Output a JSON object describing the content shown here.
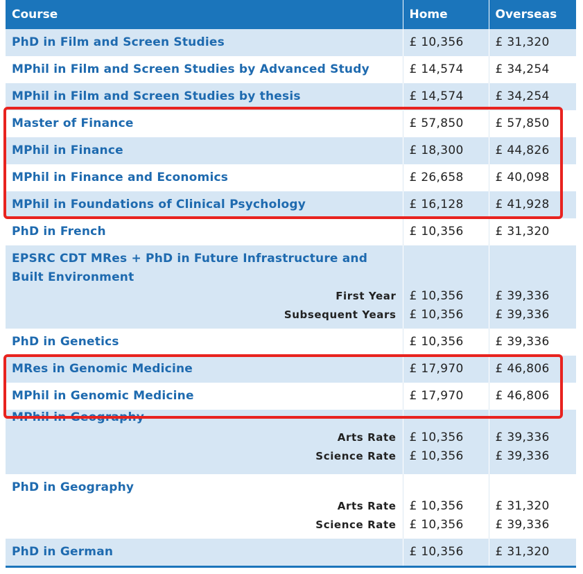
{
  "headers": {
    "course": "Course",
    "home": "Home",
    "overseas": "Overseas"
  },
  "rows": [
    {
      "course": "PhD in Film and Screen Studies",
      "home": "£ 10,356",
      "overseas": "£ 31,320"
    },
    {
      "course": "MPhil in Film and Screen Studies by Advanced Study",
      "home": "£ 14,574",
      "overseas": "£ 34,254"
    },
    {
      "course": "MPhil in Film and Screen Studies by thesis",
      "home": "£ 14,574",
      "overseas": "£ 34,254"
    },
    {
      "course": "Master of Finance",
      "home": "£ 57,850",
      "overseas": "£ 57,850"
    },
    {
      "course": "MPhil in Finance",
      "home": "£ 18,300",
      "overseas": "£ 44,826"
    },
    {
      "course": "MPhil in Finance and Economics",
      "home": "£ 26,658",
      "overseas": "£ 40,098"
    },
    {
      "course": "MPhil in Foundations of Clinical Psychology",
      "home": "£ 16,128",
      "overseas": "£ 41,928"
    },
    {
      "course": "PhD in French",
      "home": "£ 10,356",
      "overseas": "£ 31,320"
    },
    {
      "course_line1": "EPSRC CDT MRes + PhD in Future Infrastructure and",
      "course_line2": "Built Environment",
      "sub": [
        {
          "label": "First Year",
          "home": "£ 10,356",
          "overseas": "£ 39,336"
        },
        {
          "label": "Subsequent Years",
          "home": "£ 10,356",
          "overseas": "£ 39,336"
        }
      ]
    },
    {
      "course": "PhD in Genetics",
      "home": "£ 10,356",
      "overseas": "£ 39,336"
    },
    {
      "course": "MRes in Genomic Medicine",
      "home": "£ 17,970",
      "overseas": "£ 46,806"
    },
    {
      "course": "MPhil in Genomic Medicine",
      "home": "£ 17,970",
      "overseas": "£ 46,806"
    },
    {
      "course": "MPhil in Geography",
      "sub": [
        {
          "label": "Arts Rate",
          "home": "£ 10,356",
          "overseas": "£ 39,336"
        },
        {
          "label": "Science Rate",
          "home": "£ 10,356",
          "overseas": "£ 39,336"
        }
      ]
    },
    {
      "course": "PhD in Geography",
      "sub": [
        {
          "label": "Arts Rate",
          "home": "£ 10,356",
          "overseas": "£ 31,320"
        },
        {
          "label": "Science Rate",
          "home": "£ 10,356",
          "overseas": "£ 39,336"
        }
      ]
    },
    {
      "course": "PhD in German",
      "home": "£ 10,356",
      "overseas": "£ 31,320"
    }
  ],
  "colors": {
    "header": "#1b75bb",
    "stripe": "#d6e6f4",
    "link": "#1e6aaf",
    "highlight": "#e8231f"
  }
}
